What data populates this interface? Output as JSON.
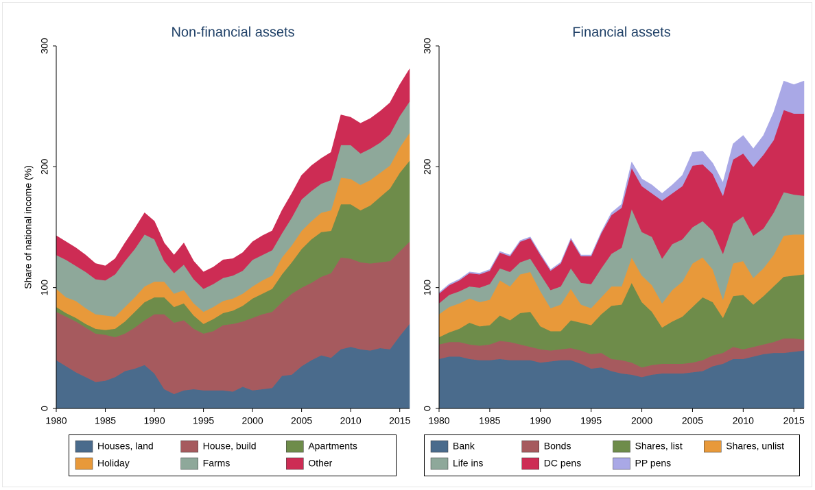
{
  "chart_data": [
    {
      "type": "area",
      "stacked": true,
      "title": "Non-financial assets",
      "y_label": "Share of national income (%)",
      "x": [
        1980,
        1981,
        1982,
        1983,
        1984,
        1985,
        1986,
        1987,
        1988,
        1989,
        1990,
        1991,
        1992,
        1993,
        1994,
        1995,
        1996,
        1997,
        1998,
        1999,
        2000,
        2001,
        2002,
        2003,
        2004,
        2005,
        2006,
        2007,
        2008,
        2009,
        2010,
        2011,
        2012,
        2013,
        2014,
        2015,
        2016
      ],
      "xlim": [
        1980,
        2016
      ],
      "xticks": [
        1980,
        1985,
        1990,
        1995,
        2000,
        2005,
        2010,
        2015
      ],
      "ylim": [
        0,
        300
      ],
      "yticks": [
        0,
        100,
        200,
        300
      ],
      "series": [
        {
          "name": "Houses, land",
          "color": "#4a6b8c",
          "values": [
            40,
            35,
            30,
            26,
            22,
            23,
            26,
            31,
            33,
            36,
            29,
            16,
            12,
            15,
            16,
            15,
            15,
            15,
            14,
            18,
            15,
            16,
            17,
            27,
            28,
            35,
            40,
            44,
            42,
            49,
            51,
            49,
            48,
            50,
            49,
            60,
            70
          ]
        },
        {
          "name": "House, build",
          "color": "#a65a5e",
          "values": [
            40,
            41,
            42,
            41,
            40,
            38,
            33,
            31,
            34,
            37,
            49,
            62,
            59,
            58,
            50,
            47,
            49,
            54,
            56,
            54,
            60,
            62,
            63,
            61,
            67,
            65,
            64,
            65,
            70,
            76,
            73,
            72,
            72,
            71,
            73,
            70,
            68
          ]
        },
        {
          "name": "Apartments",
          "color": "#6e8c4a",
          "values": [
            4,
            3,
            3,
            3,
            4,
            4,
            7,
            10,
            13,
            15,
            14,
            14,
            13,
            14,
            11,
            8,
            10,
            10,
            11,
            13,
            16,
            17,
            19,
            23,
            26,
            32,
            36,
            37,
            35,
            44,
            45,
            43,
            48,
            54,
            60,
            65,
            67
          ]
        },
        {
          "name": "Holiday",
          "color": "#e8993a",
          "values": [
            15,
            13,
            14,
            13,
            12,
            12,
            10,
            12,
            12,
            13,
            13,
            13,
            11,
            11,
            10,
            10,
            10,
            10,
            10,
            10,
            10,
            11,
            11,
            14,
            14,
            15,
            15,
            16,
            17,
            22,
            21,
            21,
            21,
            20,
            19,
            21,
            23
          ]
        },
        {
          "name": "Farms",
          "color": "#8ea89a",
          "values": [
            28,
            31,
            29,
            30,
            29,
            29,
            35,
            38,
            40,
            43,
            35,
            17,
            17,
            21,
            20,
            19,
            19,
            19,
            19,
            19,
            22,
            21,
            21,
            20,
            23,
            26,
            25,
            24,
            25,
            27,
            28,
            26,
            26,
            25,
            26,
            26,
            26
          ]
        },
        {
          "name": "Other",
          "color": "#cd2c54",
          "values": [
            16,
            15,
            15,
            14,
            13,
            12,
            13,
            15,
            17,
            18,
            15,
            15,
            15,
            18,
            15,
            14,
            14,
            15,
            14,
            15,
            15,
            16,
            16,
            19,
            20,
            20,
            21,
            21,
            23,
            25,
            23,
            25,
            25,
            26,
            26,
            26,
            27
          ]
        }
      ]
    },
    {
      "type": "area",
      "stacked": true,
      "title": "Financial assets",
      "x": [
        1980,
        1981,
        1982,
        1983,
        1984,
        1985,
        1986,
        1987,
        1988,
        1989,
        1990,
        1991,
        1992,
        1993,
        1994,
        1995,
        1996,
        1997,
        1998,
        1999,
        2000,
        2001,
        2002,
        2003,
        2004,
        2005,
        2006,
        2007,
        2008,
        2009,
        2010,
        2011,
        2012,
        2013,
        2014,
        2015,
        2016
      ],
      "xlim": [
        1980,
        2016
      ],
      "xticks": [
        1980,
        1985,
        1990,
        1995,
        2000,
        2005,
        2010,
        2015
      ],
      "ylim": [
        0,
        300
      ],
      "yticks": [
        0,
        100,
        200,
        300
      ],
      "series": [
        {
          "name": "Bank",
          "color": "#4a6b8c",
          "values": [
            41,
            43,
            43,
            41,
            40,
            40,
            41,
            40,
            40,
            40,
            38,
            39,
            40,
            40,
            37,
            33,
            34,
            31,
            29,
            28,
            26,
            28,
            29,
            29,
            29,
            30,
            31,
            35,
            37,
            41,
            41,
            43,
            45,
            46,
            46,
            47,
            48
          ]
        },
        {
          "name": "Bonds",
          "color": "#a65a5e",
          "values": [
            12,
            12,
            12,
            12,
            12,
            13,
            15,
            15,
            13,
            11,
            11,
            9,
            9,
            10,
            11,
            12,
            12,
            10,
            11,
            10,
            8,
            8,
            8,
            8,
            8,
            8,
            9,
            9,
            9,
            10,
            8,
            8,
            8,
            9,
            12,
            11,
            9
          ]
        },
        {
          "name": "Shares, list",
          "color": "#6e8c4a",
          "values": [
            6,
            8,
            11,
            18,
            16,
            16,
            21,
            18,
            26,
            29,
            19,
            16,
            15,
            23,
            23,
            24,
            32,
            44,
            46,
            66,
            54,
            44,
            30,
            35,
            39,
            46,
            52,
            44,
            29,
            42,
            45,
            35,
            40,
            46,
            51,
            52,
            54
          ]
        },
        {
          "name": "Shares, unlist",
          "color": "#e8993a",
          "values": [
            19,
            21,
            21,
            20,
            20,
            21,
            29,
            28,
            32,
            33,
            29,
            19,
            22,
            26,
            15,
            14,
            14,
            16,
            15,
            21,
            22,
            22,
            20,
            26,
            29,
            36,
            33,
            27,
            15,
            27,
            28,
            22,
            23,
            26,
            34,
            34,
            33
          ]
        },
        {
          "name": "Life ins",
          "color": "#8ea89a",
          "values": [
            9,
            10,
            10,
            10,
            12,
            13,
            10,
            12,
            10,
            11,
            14,
            15,
            15,
            17,
            18,
            20,
            24,
            27,
            32,
            40,
            36,
            40,
            37,
            38,
            35,
            30,
            30,
            32,
            38,
            33,
            37,
            35,
            33,
            35,
            36,
            33,
            32
          ]
        },
        {
          "name": "DC pens",
          "color": "#cd2c54",
          "values": [
            8,
            8,
            9,
            11,
            11,
            11,
            13,
            13,
            17,
            17,
            16,
            16,
            19,
            24,
            22,
            23,
            29,
            32,
            33,
            34,
            38,
            36,
            48,
            42,
            44,
            51,
            47,
            47,
            48,
            53,
            52,
            57,
            61,
            60,
            68,
            67,
            68
          ]
        },
        {
          "name": "PP pens",
          "color": "#a9a8e6",
          "values": [
            1,
            1,
            1,
            1,
            1,
            1,
            1,
            1,
            1,
            1,
            1,
            1,
            1,
            1,
            1,
            1,
            1,
            2,
            3,
            5,
            6,
            7,
            6,
            7,
            9,
            11,
            11,
            9,
            11,
            13,
            15,
            15,
            16,
            23,
            24,
            24,
            27
          ]
        }
      ]
    }
  ]
}
